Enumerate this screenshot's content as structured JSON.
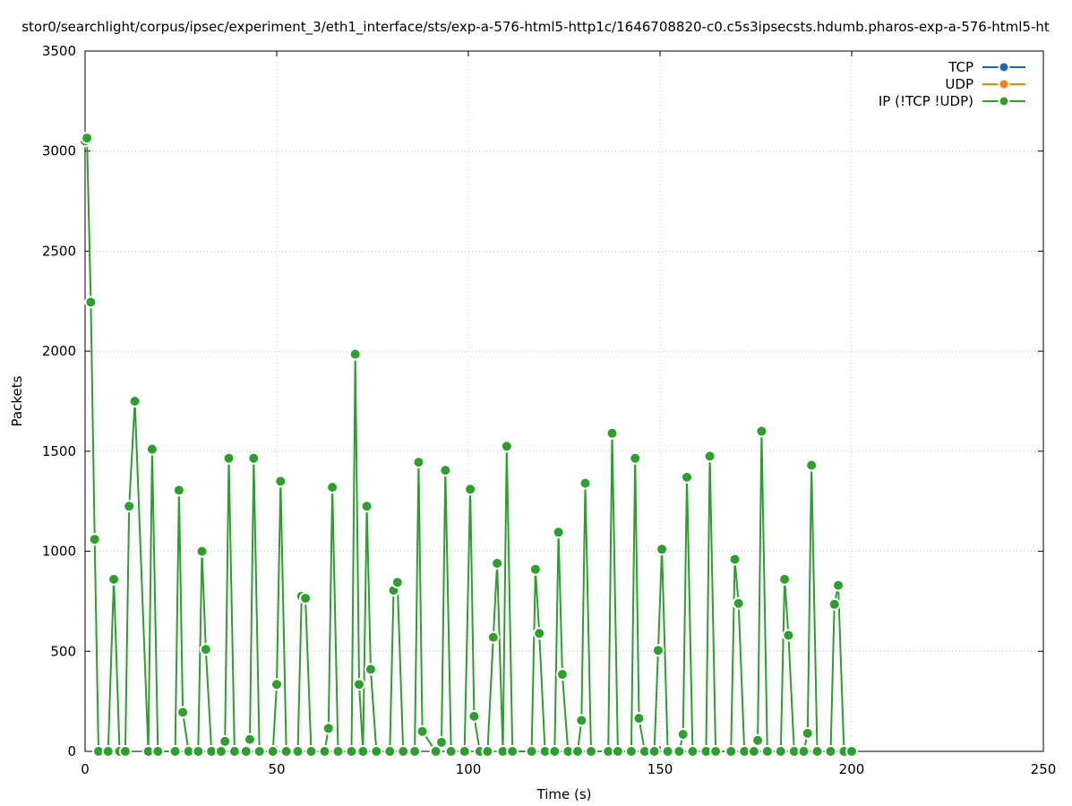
{
  "chart_data": {
    "type": "line",
    "title": "stor0/searchlight/corpus/ipsec/experiment_3/eth1_interface/sts/exp-a-576-html5-http1c/1646708820-c0.c5s3ipsecsts.hdumb.pharos-exp-a-576-html5-ht",
    "xlabel": "Time (s)",
    "ylabel": "Packets",
    "xlim": [
      0,
      250
    ],
    "ylim": [
      0,
      3500
    ],
    "x_ticks": [
      0,
      50,
      100,
      150,
      200,
      250
    ],
    "y_ticks": [
      0,
      500,
      1000,
      1500,
      2000,
      2500,
      3000,
      3500
    ],
    "grid": true,
    "legend_position": "top-right",
    "series": [
      {
        "name": "TCP",
        "color": "#1f66b3",
        "x": [],
        "y": []
      },
      {
        "name": "UDP",
        "color": "#ff7f0e",
        "x": [],
        "y": []
      },
      {
        "name": "IP (!TCP  !UDP)",
        "color": "#2ca02c",
        "x": [
          0,
          0.5,
          1.5,
          2.5,
          3.5,
          6,
          7.5,
          9,
          10.5,
          11.5,
          13,
          16.5,
          17.5,
          19,
          23.5,
          24.5,
          25.5,
          27,
          29.5,
          30.5,
          31.5,
          33,
          35.5,
          36.5,
          37.5,
          39,
          42,
          43,
          44,
          45.5,
          49,
          50,
          51,
          52.5,
          55.5,
          56.5,
          57.5,
          59,
          62.5,
          63.5,
          64.5,
          66,
          69.5,
          70.5,
          71.5,
          72.5,
          73.5,
          74.5,
          76,
          79.5,
          80.5,
          81.5,
          83,
          86,
          87,
          88,
          91.5,
          93,
          94,
          95.5,
          99,
          100.5,
          101.5,
          103,
          105,
          106.5,
          107.5,
          109,
          110,
          111.5,
          116.5,
          117.5,
          118.5,
          120,
          122.5,
          123.5,
          124.5,
          126,
          128.5,
          129.5,
          130.5,
          132,
          136.5,
          137.5,
          139,
          142.5,
          143.5,
          144.5,
          146,
          148.5,
          149.5,
          150.5,
          152,
          155,
          156,
          157,
          158.5,
          162,
          163,
          164.5,
          168.5,
          169.5,
          170.5,
          172,
          174.5,
          175.5,
          176.5,
          178,
          181.5,
          182.5,
          183.5,
          185,
          187.5,
          188.5,
          189.5,
          191,
          194.5,
          195.5,
          196.5,
          198,
          200
        ],
        "y": [
          3050,
          3065,
          2245,
          1060,
          0,
          0,
          860,
          0,
          0,
          1225,
          1750,
          0,
          1510,
          0,
          0,
          1305,
          195,
          0,
          0,
          1000,
          510,
          0,
          0,
          50,
          1465,
          0,
          0,
          60,
          1465,
          0,
          0,
          335,
          1350,
          0,
          0,
          775,
          765,
          0,
          0,
          115,
          1320,
          0,
          0,
          1985,
          335,
          0,
          1225,
          410,
          0,
          0,
          805,
          845,
          0,
          0,
          1445,
          100,
          0,
          45,
          1405,
          0,
          0,
          1310,
          175,
          0,
          0,
          570,
          940,
          0,
          1525,
          0,
          0,
          910,
          590,
          0,
          0,
          1095,
          385,
          0,
          0,
          155,
          1340,
          0,
          0,
          1590,
          0,
          0,
          1465,
          165,
          0,
          0,
          505,
          1010,
          0,
          0,
          85,
          1370,
          0,
          0,
          1475,
          0,
          0,
          960,
          740,
          0,
          0,
          55,
          1600,
          0,
          0,
          860,
          580,
          0,
          0,
          90,
          1430,
          0,
          0,
          735,
          830,
          0,
          0
        ]
      }
    ]
  }
}
